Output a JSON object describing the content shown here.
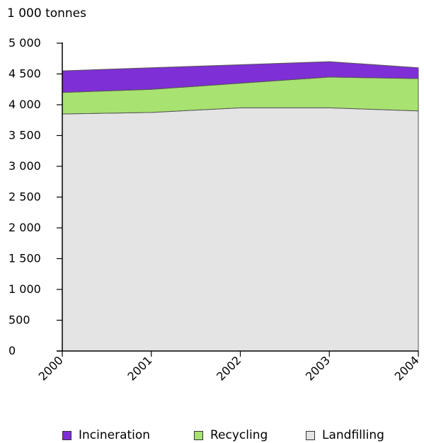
{
  "chart_data": {
    "type": "area",
    "stacked": true,
    "unit_label": "1 000 tonnes",
    "x": [
      "2000",
      "2001",
      "2002",
      "2003",
      "2004"
    ],
    "ylim": [
      0,
      5000
    ],
    "yticks": [
      "0",
      "500",
      "1 000",
      "1 500",
      "2 000",
      "2 500",
      "3 000",
      "3 500",
      "4 000",
      "4 500",
      "5 000"
    ],
    "ytick_values": [
      0,
      500,
      1000,
      1500,
      2000,
      2500,
      3000,
      3500,
      4000,
      4500,
      5000
    ],
    "grid": false,
    "legend_position": "bottom",
    "series": [
      {
        "name": "Landfilling",
        "color": "#e4e4e4",
        "values": [
          3850,
          3875,
          3950,
          3950,
          3900
        ]
      },
      {
        "name": "Recycling",
        "color": "#a8e271",
        "values": [
          350,
          375,
          400,
          500,
          525
        ]
      },
      {
        "name": "Incineration",
        "color": "#7e2fd6",
        "values": [
          350,
          350,
          300,
          250,
          175
        ]
      }
    ],
    "legend": [
      "Incineration",
      "Recycling",
      "Landfilling"
    ]
  }
}
